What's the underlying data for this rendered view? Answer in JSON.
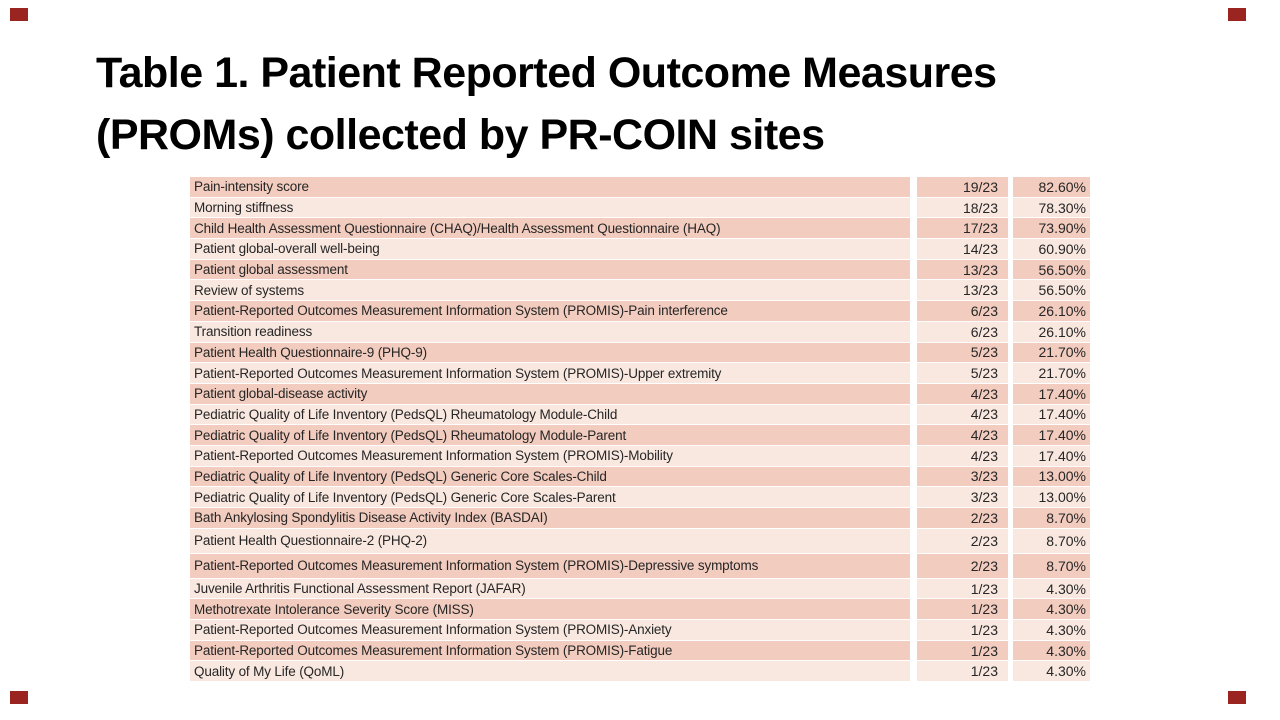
{
  "slide": {
    "title_line1": "Table 1. Patient Reported Outcome Measures",
    "title_line2": "(PROMs) collected by PR-COIN sites"
  },
  "theme": {
    "accent_color": "#9A2420",
    "row_dark": "#F2CCBE",
    "row_light": "#F9E8E0",
    "text_color": "#262626",
    "title_color": "#000000",
    "background": "#FFFFFF"
  },
  "table": {
    "columns": [
      "measure",
      "sites",
      "percent"
    ],
    "denominator": "23",
    "rows": [
      {
        "measure": "Pain-intensity score",
        "sites": "19/23",
        "percent": "82.60%"
      },
      {
        "measure": "Morning stiffness",
        "sites": "18/23",
        "percent": "78.30%"
      },
      {
        "measure": "Child Health Assessment Questionnaire (CHAQ)/Health Assessment Questionnaire (HAQ)",
        "sites": "17/23",
        "percent": "73.90%"
      },
      {
        "measure": "Patient global-overall well-being",
        "sites": "14/23",
        "percent": "60.90%"
      },
      {
        "measure": "Patient global assessment",
        "sites": "13/23",
        "percent": "56.50%"
      },
      {
        "measure": "Review of systems",
        "sites": "13/23",
        "percent": "56.50%"
      },
      {
        "measure": "Patient-Reported Outcomes Measurement Information System (PROMIS)-Pain interference",
        "sites": "6/23",
        "percent": "26.10%"
      },
      {
        "measure": "Transition readiness",
        "sites": "6/23",
        "percent": "26.10%"
      },
      {
        "measure": "Patient Health Questionnaire-9 (PHQ-9)",
        "sites": "5/23",
        "percent": "21.70%"
      },
      {
        "measure": "Patient-Reported Outcomes Measurement Information System (PROMIS)-Upper extremity",
        "sites": "5/23",
        "percent": "21.70%"
      },
      {
        "measure": "Patient global-disease activity",
        "sites": "4/23",
        "percent": "17.40%"
      },
      {
        "measure": "Pediatric Quality of Life Inventory (PedsQL) Rheumatology Module-Child",
        "sites": "4/23",
        "percent": "17.40%"
      },
      {
        "measure": "Pediatric Quality of Life Inventory (PedsQL) Rheumatology Module-Parent",
        "sites": "4/23",
        "percent": "17.40%"
      },
      {
        "measure": "Patient-Reported Outcomes Measurement Information System (PROMIS)-Mobility",
        "sites": "4/23",
        "percent": "17.40%"
      },
      {
        "measure": "Pediatric Quality of Life Inventory (PedsQL) Generic Core Scales-Child",
        "sites": "3/23",
        "percent": "13.00%"
      },
      {
        "measure": "Pediatric Quality of Life Inventory (PedsQL) Generic Core Scales-Parent",
        "sites": "3/23",
        "percent": "13.00%"
      },
      {
        "measure": "Bath Ankylosing Spondylitis Disease Activity Index (BASDAI)",
        "sites": "2/23",
        "percent": "8.70%"
      },
      {
        "measure": "Patient Health Questionnaire-2 (PHQ-2)",
        "sites": "2/23",
        "percent": "8.70%",
        "tall": true
      },
      {
        "measure": "Patient-Reported Outcomes Measurement Information System (PROMIS)-Depressive symptoms",
        "sites": "2/23",
        "percent": "8.70%",
        "tall": true
      },
      {
        "measure": "Juvenile Arthritis Functional Assessment Report (JAFAR)",
        "sites": "1/23",
        "percent": "4.30%"
      },
      {
        "measure": "Methotrexate Intolerance Severity Score (MISS)",
        "sites": "1/23",
        "percent": "4.30%"
      },
      {
        "measure": "Patient-Reported Outcomes Measurement Information System (PROMIS)-Anxiety",
        "sites": "1/23",
        "percent": "4.30%"
      },
      {
        "measure": "Patient-Reported Outcomes Measurement Information System (PROMIS)-Fatigue",
        "sites": "1/23",
        "percent": "4.30%"
      },
      {
        "measure": "Quality of My Life (QoML)",
        "sites": "1/23",
        "percent": "4.30%"
      }
    ]
  }
}
